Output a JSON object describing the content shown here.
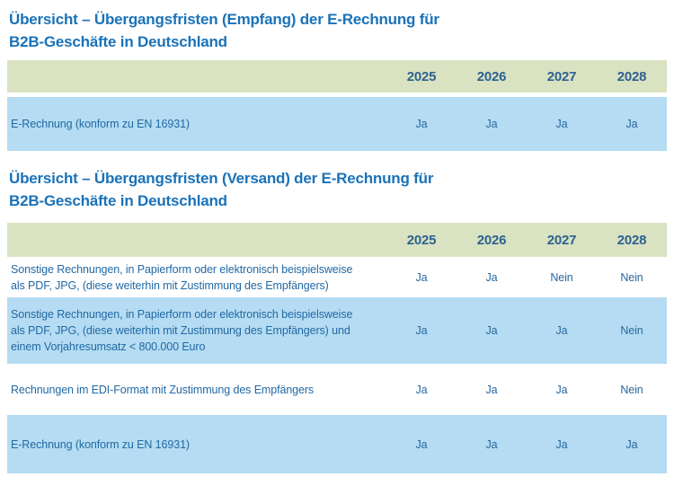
{
  "colors": {
    "title_blue": "#1a72b8",
    "header_green": "#d9e3c2",
    "row_blue": "#b5dcf2",
    "year_text": "#2d6190",
    "body_text": "#2169a5"
  },
  "tables": [
    {
      "title": "Übersicht – Übergangsfristen (Empfang) der E-Rechnung für\nB2B-Geschäfte in Deutschland",
      "years": [
        "2025",
        "2026",
        "2027",
        "2028"
      ],
      "rows": [
        {
          "label": "E-Rechnung (konform zu EN 16931)",
          "values": [
            "Ja",
            "Ja",
            "Ja",
            "Ja"
          ]
        }
      ]
    },
    {
      "title": "Übersicht – Übergangsfristen (Versand) der E-Rechnung für\nB2B-Geschäfte in Deutschland",
      "years": [
        "2025",
        "2026",
        "2027",
        "2028"
      ],
      "rows": [
        {
          "label": "Sonstige Rechnungen, in Papierform oder elektronisch beispielsweise\nals PDF, JPG, (diese weiterhin mit Zustimmung des Empfängers)",
          "values": [
            "Ja",
            "Ja",
            "Nein",
            "Nein"
          ]
        },
        {
          "label": "Sonstige Rechnungen, in Papierform oder elektronisch beispielsweise\nals PDF, JPG, (diese weiterhin mit Zustimmung des Empfängers) und\neinem Vorjahresumsatz < 800.000 Euro",
          "values": [
            "Ja",
            "Ja",
            "Ja",
            "Nein"
          ]
        },
        {
          "label": "Rechnungen im EDI-Format mit Zustimmung des Empfängers",
          "values": [
            "Ja",
            "Ja",
            "Ja",
            "Nein"
          ]
        },
        {
          "label": "E-Rechnung (konform zu EN 16931)",
          "values": [
            "Ja",
            "Ja",
            "Ja",
            "Ja"
          ]
        }
      ]
    }
  ]
}
